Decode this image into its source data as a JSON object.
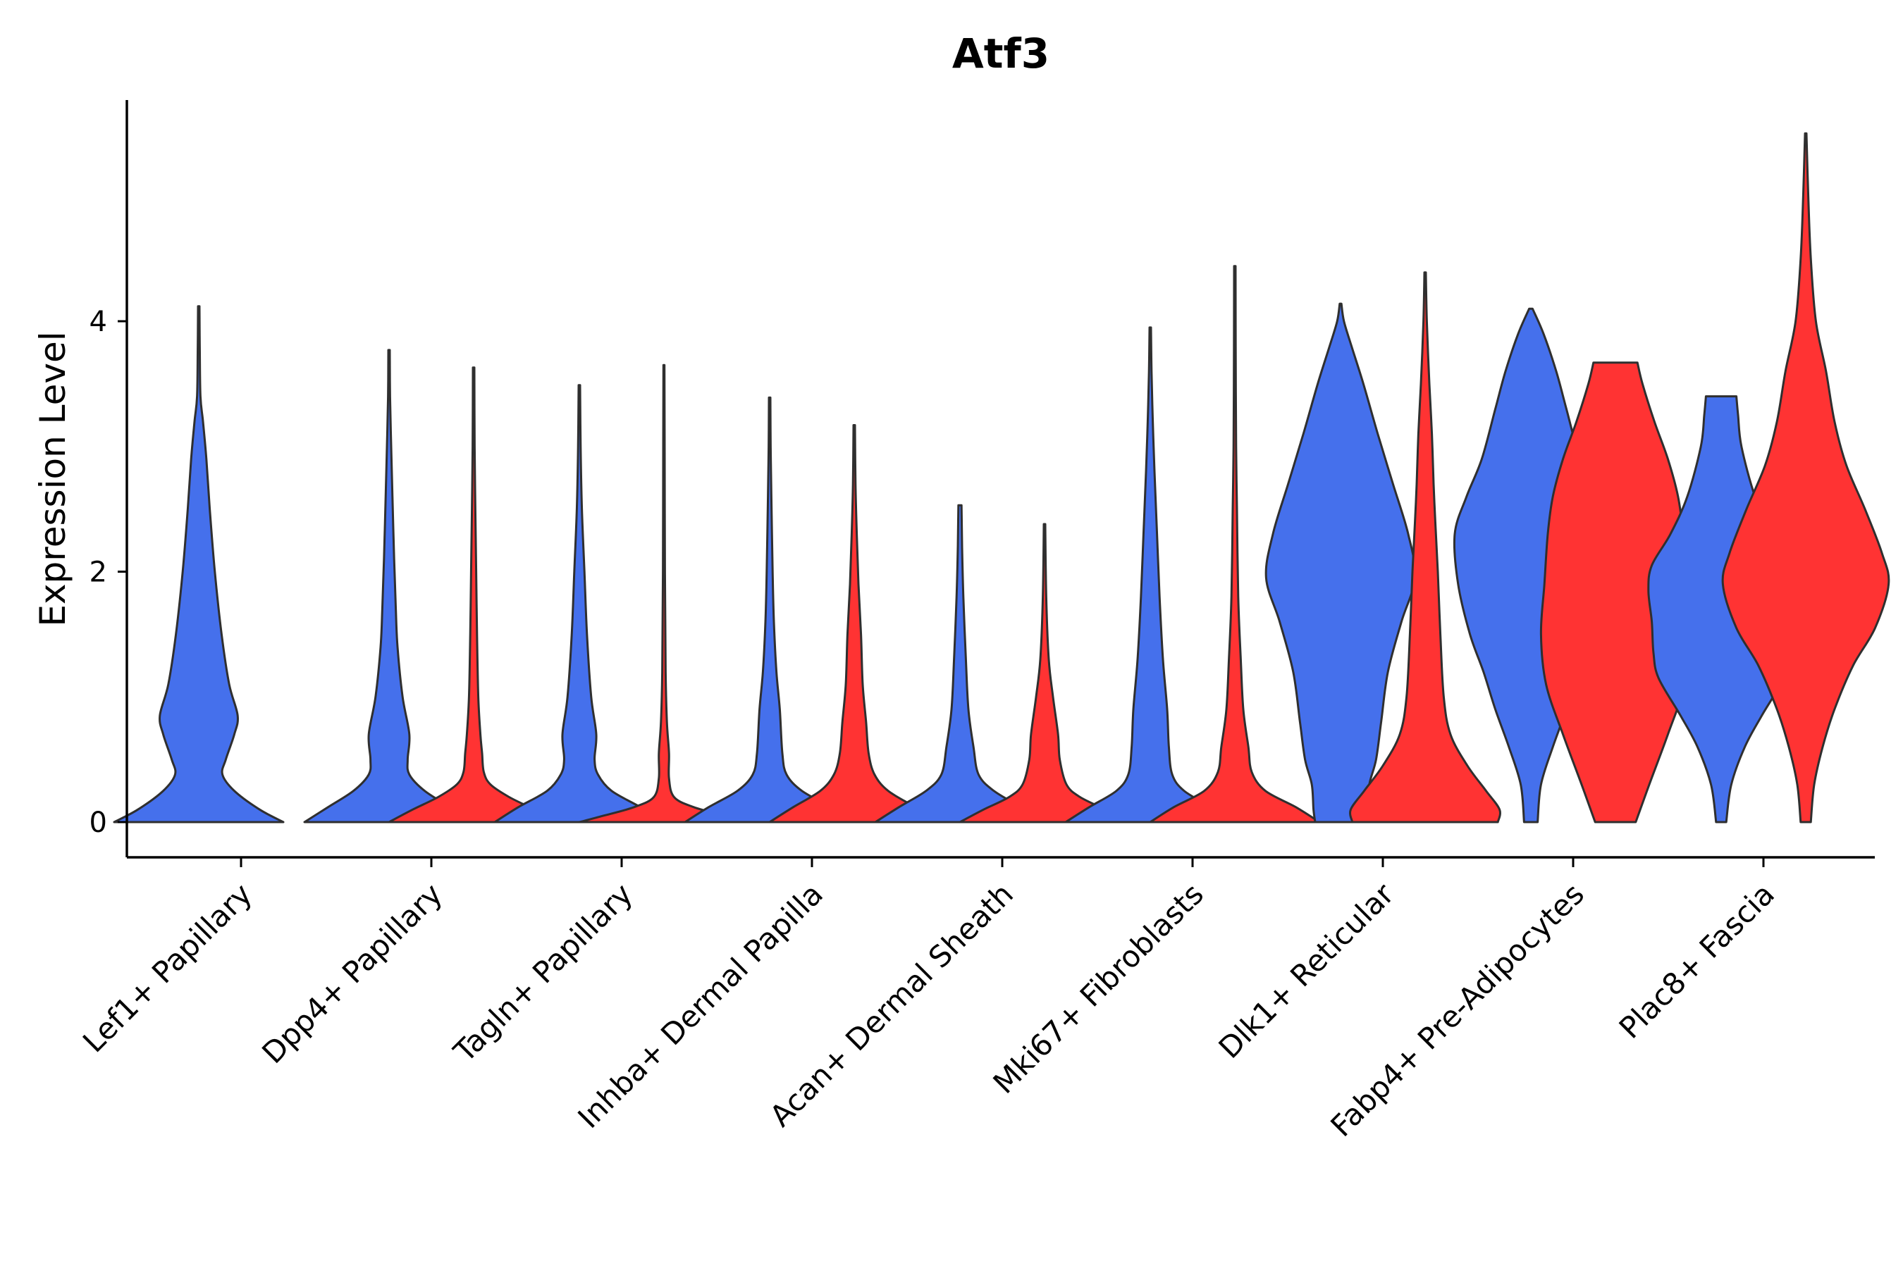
{
  "chart_data": {
    "type": "violin",
    "title": "Atf3",
    "xlabel": "",
    "ylabel": "Expression Level",
    "ylim": [
      -0.28,
      5.8
    ],
    "yticks": [
      0,
      2,
      4
    ],
    "grid": false,
    "legend": "none",
    "series_colors": [
      "#4570ec",
      "#ff3333"
    ],
    "categories": [
      "Lef1+ Papillary",
      "Dpp4+ Papillary",
      "Tagln+ Papillary",
      "Inhba+ Dermal Papilla",
      "Acan+ Dermal Sheath",
      "Mki67+ Fibroblasts",
      "Dlk1+ Reticular",
      "Fabp4+ Pre-Adipocytes",
      "Plac8+ Fascia"
    ],
    "violins": [
      {
        "category": "Lef1+ Papillary",
        "group": 1,
        "color": "#4570ec",
        "profile": [
          [
            0,
            1.0
          ],
          [
            0.1,
            0.72
          ],
          [
            0.25,
            0.42
          ],
          [
            0.38,
            0.28
          ],
          [
            0.5,
            0.32
          ],
          [
            0.7,
            0.42
          ],
          [
            0.85,
            0.46
          ],
          [
            1.1,
            0.36
          ],
          [
            1.5,
            0.27
          ],
          [
            2.0,
            0.19
          ],
          [
            2.5,
            0.13
          ],
          [
            2.9,
            0.09
          ],
          [
            3.2,
            0.05
          ],
          [
            3.4,
            0.02
          ],
          [
            3.8,
            0.012
          ],
          [
            4.12,
            0.008
          ]
        ]
      },
      {
        "category": "Dpp4+ Papillary",
        "group": 1,
        "color": "#4570ec",
        "profile": [
          [
            0,
            1.0
          ],
          [
            0.12,
            0.72
          ],
          [
            0.25,
            0.42
          ],
          [
            0.38,
            0.24
          ],
          [
            0.5,
            0.22
          ],
          [
            0.7,
            0.24
          ],
          [
            1.0,
            0.16
          ],
          [
            1.4,
            0.1
          ],
          [
            1.7,
            0.08
          ],
          [
            2.1,
            0.06
          ],
          [
            2.6,
            0.04
          ],
          [
            3.0,
            0.025
          ],
          [
            3.4,
            0.012
          ],
          [
            3.77,
            0.008
          ]
        ]
      },
      {
        "category": "Dpp4+ Papillary",
        "group": 2,
        "color": "#ff3333",
        "profile": [
          [
            0,
            1.0
          ],
          [
            0.1,
            0.72
          ],
          [
            0.2,
            0.42
          ],
          [
            0.3,
            0.2
          ],
          [
            0.4,
            0.12
          ],
          [
            0.55,
            0.1
          ],
          [
            0.7,
            0.08
          ],
          [
            1.0,
            0.055
          ],
          [
            1.5,
            0.04
          ],
          [
            2.0,
            0.03
          ],
          [
            2.5,
            0.02
          ],
          [
            3.0,
            0.012
          ],
          [
            3.63,
            0.008
          ]
        ]
      },
      {
        "category": "Tagln+ Papillary",
        "group": 1,
        "color": "#4570ec",
        "profile": [
          [
            0,
            1.0
          ],
          [
            0.12,
            0.72
          ],
          [
            0.25,
            0.38
          ],
          [
            0.38,
            0.22
          ],
          [
            0.5,
            0.18
          ],
          [
            0.7,
            0.2
          ],
          [
            1.0,
            0.14
          ],
          [
            1.5,
            0.09
          ],
          [
            2.0,
            0.06
          ],
          [
            2.5,
            0.03
          ],
          [
            3.0,
            0.015
          ],
          [
            3.49,
            0.008
          ]
        ]
      },
      {
        "category": "Tagln+ Papillary",
        "group": 2,
        "color": "#ff3333",
        "profile": [
          [
            0,
            1.0
          ],
          [
            0.05,
            0.72
          ],
          [
            0.12,
            0.35
          ],
          [
            0.2,
            0.12
          ],
          [
            0.35,
            0.06
          ],
          [
            0.55,
            0.06
          ],
          [
            0.8,
            0.035
          ],
          [
            1.2,
            0.02
          ],
          [
            2.0,
            0.012
          ],
          [
            3.0,
            0.008
          ],
          [
            3.65,
            0.006
          ]
        ]
      },
      {
        "category": "Inhba+ Dermal Papilla",
        "group": 1,
        "color": "#4570ec",
        "profile": [
          [
            0,
            1.0
          ],
          [
            0.12,
            0.72
          ],
          [
            0.25,
            0.38
          ],
          [
            0.38,
            0.2
          ],
          [
            0.55,
            0.15
          ],
          [
            0.9,
            0.12
          ],
          [
            1.2,
            0.08
          ],
          [
            1.6,
            0.05
          ],
          [
            2.0,
            0.035
          ],
          [
            2.6,
            0.02
          ],
          [
            3.0,
            0.012
          ],
          [
            3.39,
            0.008
          ]
        ]
      },
      {
        "category": "Inhba+ Dermal Papilla",
        "group": 2,
        "color": "#ff3333",
        "profile": [
          [
            0,
            1.0
          ],
          [
            0.12,
            0.72
          ],
          [
            0.25,
            0.4
          ],
          [
            0.38,
            0.24
          ],
          [
            0.55,
            0.17
          ],
          [
            0.8,
            0.14
          ],
          [
            1.1,
            0.1
          ],
          [
            1.5,
            0.08
          ],
          [
            1.9,
            0.05
          ],
          [
            2.3,
            0.03
          ],
          [
            2.7,
            0.015
          ],
          [
            3.17,
            0.008
          ]
        ]
      },
      {
        "category": "Acan+ Dermal Sheath",
        "group": 1,
        "color": "#4570ec",
        "profile": [
          [
            0,
            1.0
          ],
          [
            0.12,
            0.72
          ],
          [
            0.25,
            0.4
          ],
          [
            0.38,
            0.22
          ],
          [
            0.6,
            0.16
          ],
          [
            0.9,
            0.1
          ],
          [
            1.3,
            0.07
          ],
          [
            1.8,
            0.04
          ],
          [
            2.2,
            0.025
          ],
          [
            2.45,
            0.02
          ],
          [
            2.53,
            0.018
          ]
        ]
      },
      {
        "category": "Acan+ Dermal Sheath",
        "group": 2,
        "color": "#ff3333",
        "profile": [
          [
            0,
            1.0
          ],
          [
            0.1,
            0.72
          ],
          [
            0.2,
            0.42
          ],
          [
            0.3,
            0.26
          ],
          [
            0.5,
            0.18
          ],
          [
            0.7,
            0.16
          ],
          [
            1.0,
            0.1
          ],
          [
            1.3,
            0.05
          ],
          [
            1.8,
            0.02
          ],
          [
            2.38,
            0.008
          ]
        ]
      },
      {
        "category": "Mki67+ Fibroblasts",
        "group": 1,
        "color": "#4570ec",
        "profile": [
          [
            0,
            1.0
          ],
          [
            0.12,
            0.72
          ],
          [
            0.25,
            0.4
          ],
          [
            0.38,
            0.26
          ],
          [
            0.6,
            0.22
          ],
          [
            0.9,
            0.2
          ],
          [
            1.3,
            0.15
          ],
          [
            1.8,
            0.11
          ],
          [
            2.3,
            0.08
          ],
          [
            2.8,
            0.05
          ],
          [
            3.2,
            0.03
          ],
          [
            3.6,
            0.015
          ],
          [
            3.95,
            0.008
          ]
        ]
      },
      {
        "category": "Mki67+ Fibroblasts",
        "group": 2,
        "color": "#ff3333",
        "profile": [
          [
            0,
            1.0
          ],
          [
            0.12,
            0.72
          ],
          [
            0.25,
            0.36
          ],
          [
            0.4,
            0.2
          ],
          [
            0.6,
            0.16
          ],
          [
            0.9,
            0.1
          ],
          [
            1.3,
            0.07
          ],
          [
            1.8,
            0.04
          ],
          [
            2.5,
            0.025
          ],
          [
            3.0,
            0.015
          ],
          [
            3.8,
            0.01
          ],
          [
            4.44,
            0.008
          ]
        ]
      },
      {
        "category": "Dlk1+ Reticular",
        "group": 1,
        "color": "#4570ec",
        "profile": [
          [
            0,
            0.3
          ],
          [
            0.1,
            0.32
          ],
          [
            0.3,
            0.34
          ],
          [
            0.5,
            0.42
          ],
          [
            0.8,
            0.48
          ],
          [
            1.2,
            0.56
          ],
          [
            1.6,
            0.72
          ],
          [
            1.95,
            0.88
          ],
          [
            2.3,
            0.8
          ],
          [
            2.7,
            0.62
          ],
          [
            3.1,
            0.44
          ],
          [
            3.5,
            0.27
          ],
          [
            3.8,
            0.13
          ],
          [
            4.0,
            0.04
          ],
          [
            4.14,
            0.01
          ]
        ]
      },
      {
        "category": "Dlk1+ Reticular",
        "group": 2,
        "color": "#ff3333",
        "profile": [
          [
            0,
            0.86
          ],
          [
            0.1,
            0.88
          ],
          [
            0.25,
            0.72
          ],
          [
            0.45,
            0.5
          ],
          [
            0.7,
            0.3
          ],
          [
            1.0,
            0.22
          ],
          [
            1.5,
            0.18
          ],
          [
            2.0,
            0.15
          ],
          [
            2.4,
            0.12
          ],
          [
            2.7,
            0.1
          ],
          [
            3.1,
            0.08
          ],
          [
            3.5,
            0.05
          ],
          [
            4.0,
            0.02
          ],
          [
            4.39,
            0.008
          ]
        ]
      },
      {
        "category": "Fabp4+ Pre-Adipocytes",
        "group": 1,
        "color": "#4570ec",
        "profile": [
          [
            0,
            0.08
          ],
          [
            0.3,
            0.12
          ],
          [
            0.6,
            0.26
          ],
          [
            0.9,
            0.42
          ],
          [
            1.2,
            0.56
          ],
          [
            1.5,
            0.72
          ],
          [
            1.9,
            0.86
          ],
          [
            2.3,
            0.9
          ],
          [
            2.6,
            0.76
          ],
          [
            2.9,
            0.58
          ],
          [
            3.3,
            0.42
          ],
          [
            3.6,
            0.3
          ],
          [
            3.9,
            0.15
          ],
          [
            4.1,
            0.02
          ]
        ]
      },
      {
        "category": "Fabp4+ Pre-Adipocytes",
        "group": 2,
        "color": "#ff3333",
        "profile": [
          [
            0,
            0.24
          ],
          [
            0.3,
            0.4
          ],
          [
            0.7,
            0.62
          ],
          [
            1.1,
            0.82
          ],
          [
            1.5,
            0.88
          ],
          [
            1.9,
            0.84
          ],
          [
            2.3,
            0.8
          ],
          [
            2.6,
            0.74
          ],
          [
            2.9,
            0.62
          ],
          [
            3.2,
            0.46
          ],
          [
            3.5,
            0.32
          ],
          [
            3.67,
            0.26
          ]
        ]
      },
      {
        "category": "Plac8+ Fascia",
        "group": 1,
        "color": "#4570ec",
        "profile": [
          [
            0,
            0.06
          ],
          [
            0.3,
            0.12
          ],
          [
            0.6,
            0.28
          ],
          [
            0.85,
            0.48
          ],
          [
            1.15,
            0.74
          ],
          [
            1.35,
            0.8
          ],
          [
            1.6,
            0.82
          ],
          [
            1.85,
            0.86
          ],
          [
            2.05,
            0.82
          ],
          [
            2.3,
            0.6
          ],
          [
            2.6,
            0.4
          ],
          [
            3.0,
            0.24
          ],
          [
            3.25,
            0.2
          ],
          [
            3.4,
            0.18
          ]
        ]
      },
      {
        "category": "Plac8+ Fascia",
        "group": 2,
        "color": "#ff3333",
        "profile": [
          [
            0,
            0.06
          ],
          [
            0.3,
            0.1
          ],
          [
            0.6,
            0.2
          ],
          [
            0.9,
            0.34
          ],
          [
            1.25,
            0.56
          ],
          [
            1.55,
            0.82
          ],
          [
            1.9,
            0.98
          ],
          [
            2.15,
            0.9
          ],
          [
            2.5,
            0.7
          ],
          [
            2.85,
            0.48
          ],
          [
            3.2,
            0.34
          ],
          [
            3.6,
            0.24
          ],
          [
            4.0,
            0.12
          ],
          [
            4.5,
            0.06
          ],
          [
            5.0,
            0.03
          ],
          [
            5.5,
            0.008
          ]
        ]
      }
    ]
  }
}
